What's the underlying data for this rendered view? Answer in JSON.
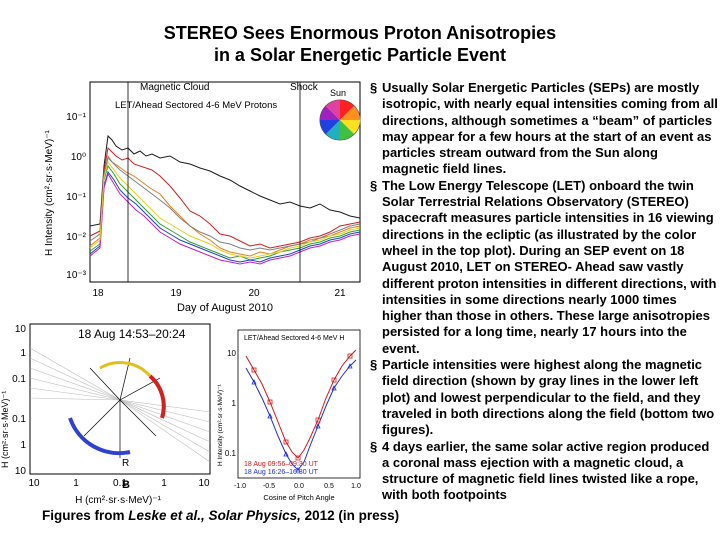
{
  "slide": {
    "title_line1": "STEREO Sees Enormous Proton Anisotropies",
    "title_line2": "in a Solar Energetic Particle Event",
    "bullets": [
      "Usually Solar Energetic Particles (SEPs) are mostly isotropic, with nearly equal intensities coming from all directions, although sometimes a “beam” of particles may appear for a few hours at the start of an event as particles stream outward from the Sun along magnetic field lines.",
      "The Low Energy Telescope (LET) onboard the twin Solar Terrestrial Relations Observatory (STEREO) spacecraft measures particle intensities in 16 viewing directions in the ecliptic (as illustrated by the color wheel in the top plot). During an SEP event on 18 August 2010, LET on STEREO- Ahead saw vastly different proton intensities in different directions, with intensities in some directions nearly 1000 times higher than those in others.  These large anisotropies persisted for a long time, nearly 17 hours into the event.",
      "Particle intensities were highest along the magnetic field direction (shown by gray lines in the lower left plot) and lowest perpendicular to the field,  and they traveled in both directions along the field (bottom two figures).",
      "4 days earlier, the same solar active region produced a coronal mass ejection with a magnetic cloud, a structure of magnetic field lines twisted like a rope, with both footpoints"
    ],
    "bullet_marker": "§",
    "caption_prefix": "Figures from  ",
    "caption_italic": "Leske et al., Solar Physics,",
    "caption_suffix": " 2012 (in press)"
  },
  "top_plot": {
    "marker_magnetic_cloud": "Magnetic Cloud",
    "marker_shock": "Shock",
    "legend": "LET/Ahead Sectored 4-6 MeV Protons",
    "sun_label": "Sun",
    "ylabel": "H Intensity (cm²·sr·s·MeV)⁻¹",
    "yticks": [
      "10⁻¹",
      "10⁰",
      "10⁻¹",
      "10⁻²",
      "10⁻³"
    ],
    "xticks": [
      "18",
      "19",
      "20",
      "21"
    ],
    "xlabel": "Day of August 2010"
  },
  "polar_plot": {
    "title": "18 Aug  14:53–20:24",
    "yticks": [
      "10",
      "1",
      "0.1",
      "0.1",
      "1",
      "10"
    ],
    "xticks": [
      "10",
      "1",
      "0.1",
      "1",
      "10"
    ],
    "xlabel": "H (cm²·sr·s·MeV)⁻¹",
    "ylabel": "H (cm²·sr·s·MeV)⁻¹",
    "b_label": "B",
    "r_label": "R"
  },
  "pitch_plot": {
    "legend": "LET/Ahead Sectored 4-6 MeV H",
    "ylabel": "H Intensity (cm²·sr·s·MeV)⁻¹",
    "yticks": [
      "10",
      "1",
      "0.1"
    ],
    "xticks": [
      "-1.0",
      "-0.5",
      "0.0",
      "0.5",
      "1.0"
    ],
    "xlabel": "Cosine of Pitch Angle",
    "series_labels": [
      "18 Aug 09:56–09:30 UT",
      "18 Aug 16:26–16:30 UT"
    ],
    "colors": {
      "series1": "#d01818",
      "series2": "#2030d0"
    }
  },
  "colors": {
    "background": "#ffffff",
    "text": "#000000",
    "grid_gray": "#aaaaaa"
  }
}
